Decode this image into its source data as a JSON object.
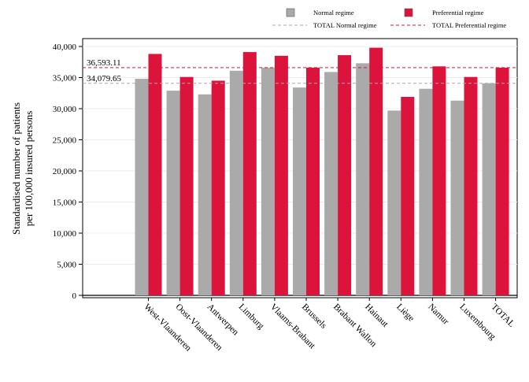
{
  "chart_data": {
    "type": "bar",
    "title": "",
    "xlabel": "",
    "ylabel": [
      "Standardised number of patients",
      "per 100,000 insured persons"
    ],
    "ylim": [
      0,
      40000
    ],
    "yticks": [
      0,
      5000,
      10000,
      15000,
      20000,
      25000,
      30000,
      35000,
      40000
    ],
    "ytick_labels": [
      "0",
      "5,000",
      "10,000",
      "15,000",
      "20,000",
      "25,000",
      "30,000",
      "35,000",
      "40,000"
    ],
    "grid": true,
    "legend_position": "top",
    "categories": [
      "West-Vlaanderen",
      "Oost-Vlaanderen",
      "Antwerpen",
      "Limburg",
      "Vlaams-Brabant",
      "Brussels",
      "Brabant Wallon",
      "Hainaut",
      "Liège",
      "Namur",
      "Luxembourg",
      "TOTAL"
    ],
    "series": [
      {
        "name": "Normal regime",
        "color": "#aaaaaa",
        "values": [
          34800,
          32900,
          32300,
          36100,
          36600,
          33400,
          35900,
          37300,
          29700,
          33200,
          31300,
          34079.65
        ]
      },
      {
        "name": "Preferential regime",
        "color": "#dc143c",
        "values": [
          38800,
          35100,
          34500,
          39100,
          38500,
          36600,
          38600,
          39800,
          31900,
          36800,
          35100,
          36593.11
        ]
      }
    ],
    "reference_lines": [
      {
        "name": "TOTAL Normal regime",
        "value": 34079.65,
        "label": "34,079.65",
        "color": "#aaaaaa",
        "style": "dashed"
      },
      {
        "name": "TOTAL Preferential regime",
        "value": 36593.11,
        "label": "36,593.11",
        "color": "#dc143c",
        "style": "dashed"
      }
    ]
  }
}
